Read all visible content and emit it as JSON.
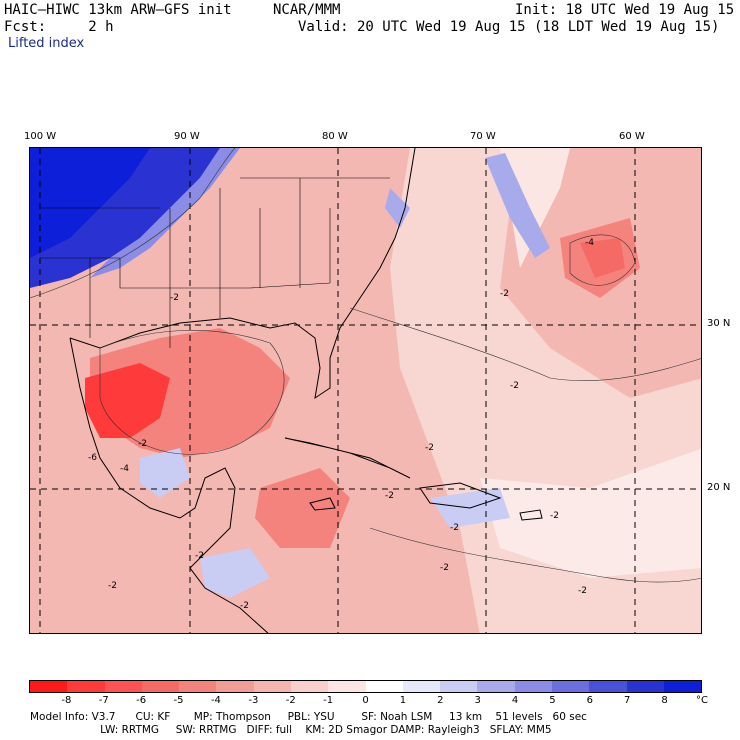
{
  "header": {
    "model": "HAIC–HIWC 13km ARW–GFS init",
    "org": "NCAR/MMM",
    "init": "Init: 18 UTC Wed 19 Aug 15",
    "fcst": "Fcst:     2 h",
    "valid": "Valid: 20 UTC Wed 19 Aug 15 (18 LDT Wed 19 Aug 15)",
    "field": "Lifted index"
  },
  "map": {
    "lon_labels": [
      "100 W",
      "90 W",
      "80 W",
      "70 W",
      "60 W"
    ],
    "lat_labels": [
      "30 N",
      "20 N"
    ],
    "contour_labels": [
      "-4",
      "-2",
      "-2",
      "-2",
      "-2",
      "-6",
      "-4",
      "-2",
      "-2",
      "-2",
      "-2",
      "-2",
      "-2",
      "-2",
      "-2",
      "-2"
    ],
    "colors": {
      "strong_neg": "#ff3030",
      "mid_neg": "#f39a95",
      "weak_neg": "#f8d6d2",
      "pos": "#4455e6",
      "strong_pos": "#0d1fd8"
    }
  },
  "colorbar": {
    "ticks": [
      "-8",
      "-7",
      "-6",
      "-5",
      "-4",
      "-3",
      "-2",
      "-1",
      "0",
      "1",
      "2",
      "3",
      "4",
      "5",
      "6",
      "7",
      "8"
    ],
    "unit": "°C",
    "colors": [
      "#ff1a1a",
      "#ff3a3a",
      "#ff5252",
      "#f66a66",
      "#f4827d",
      "#f29c96",
      "#f4b5b0",
      "#f8cfcb",
      "#fbe6e4",
      "#ffffff",
      "#e6e9f9",
      "#c9ccf3",
      "#a8abeb",
      "#8a8ce5",
      "#6a6ede",
      "#4a50d8",
      "#2a32d2",
      "#0d1fd8"
    ]
  },
  "info": {
    "line1": "Model Info: V3.7      CU: KF       MP: Thompson     PBL: YSU        SF: Noah LSM     13 km    51 levels   60 sec",
    "line2": "                     LW: RRTMG     SW: RRTMG   DIFF: full    KM: 2D Smagor DAMP: Rayleigh3   SFLAY: MM5"
  }
}
